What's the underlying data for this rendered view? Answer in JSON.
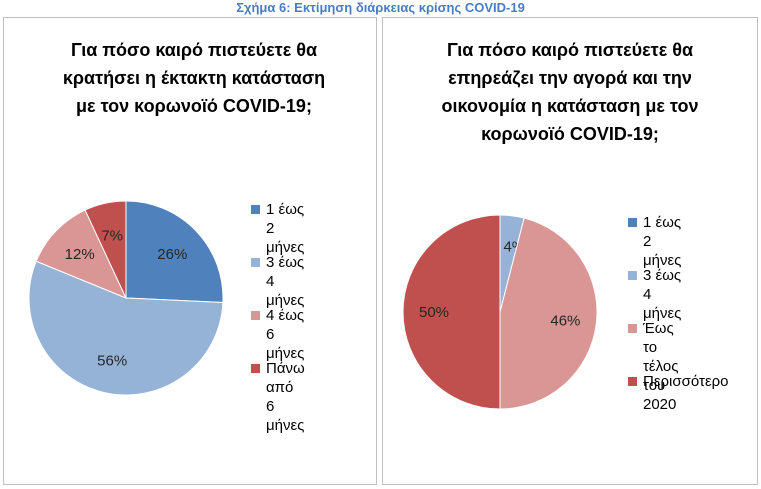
{
  "figure_caption": "Σχήμα 6: Εκτίμηση διάρκειας κρίσης COVID-19",
  "chart_data": [
    {
      "type": "pie",
      "title": "Για πόσο καιρό πιστεύετε θα\nκρατήσει η έκτακτη κατάσταση\nμε τον κορωνοϊό COVID-19;",
      "categories": [
        "1 έως 2 μήνες",
        "3 έως 4 μήνες",
        "4 έως 6 μήνες",
        "Πάνω από 6\nμήνες"
      ],
      "values": [
        26,
        56,
        12,
        7
      ],
      "data_labels": [
        "26%",
        "56%",
        "12%",
        "7%"
      ],
      "colors": [
        "#4f81bd",
        "#95b3d7",
        "#d99694",
        "#c0504d"
      ],
      "legend_position": "right"
    },
    {
      "type": "pie",
      "title": "Για πόσο καιρό πιστεύετε θα\nεπηρεάζει την αγορά και την\nοικονομία η κατάσταση με τον\nκορωνοϊό COVID-19;",
      "categories": [
        "1 έως 2 μήνες",
        "3 έως 4 μήνες",
        "Έως το τέλος\nτου 2020",
        "Περισσότερο"
      ],
      "values": [
        0,
        4,
        46,
        50
      ],
      "data_labels": [
        "0%",
        "4%",
        "46%",
        "50%"
      ],
      "colors": [
        "#4f81bd",
        "#95b3d7",
        "#d99694",
        "#c0504d"
      ],
      "legend_position": "right"
    }
  ]
}
